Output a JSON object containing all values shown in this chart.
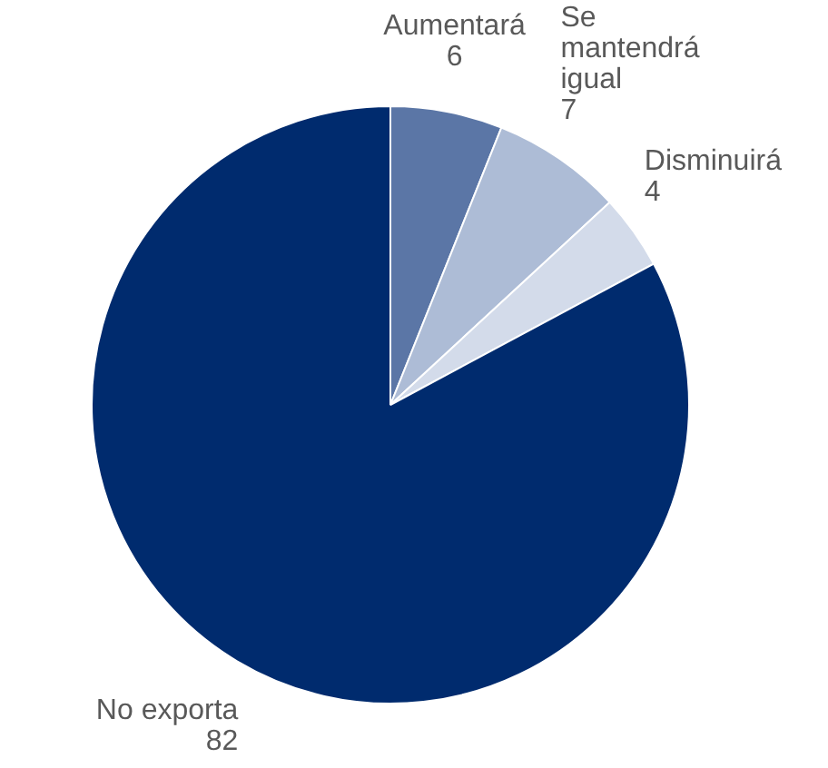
{
  "chart_data": {
    "type": "pie",
    "categories": [
      "Aumentará",
      "Se mantendrá igual",
      "Disminuirá",
      "No exporta"
    ],
    "values": [
      6,
      7,
      4,
      82
    ],
    "colors": [
      "#5b76a6",
      "#adbcd6",
      "#d3dbea",
      "#002b6e"
    ],
    "data_labels": true,
    "legend": false
  }
}
